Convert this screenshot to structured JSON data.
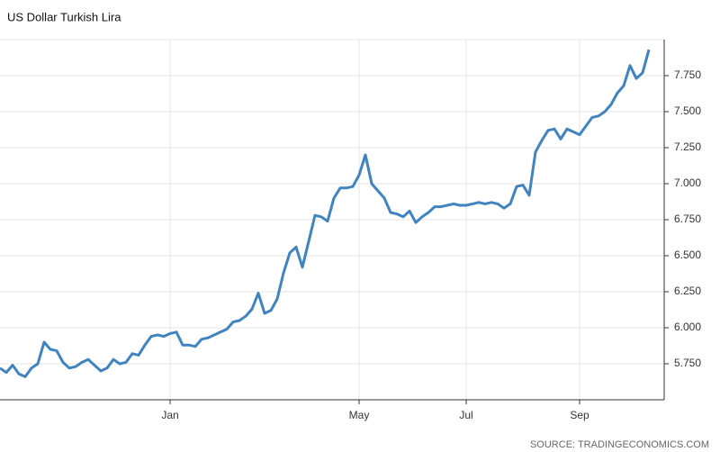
{
  "chart_data": {
    "type": "line",
    "title": "US Dollar Turkish Lira",
    "source": "SOURCE: TRADINGECONOMICS.COM",
    "categories": [
      null,
      null,
      null,
      null,
      null,
      null,
      null,
      null,
      null,
      null,
      null,
      null,
      null,
      null,
      null,
      null,
      null,
      null,
      null,
      null,
      null,
      null,
      null,
      null,
      null,
      null,
      null,
      "Jan",
      null,
      null,
      null,
      null,
      null,
      null,
      null,
      null,
      null,
      null,
      null,
      null,
      null,
      null,
      null,
      null,
      null,
      null,
      null,
      null,
      null,
      null,
      null,
      null,
      null,
      null,
      null,
      null,
      null,
      "May",
      null,
      null,
      null,
      null,
      null,
      null,
      null,
      null,
      null,
      null,
      null,
      null,
      null,
      null,
      null,
      null,
      "Jul",
      null,
      null,
      null,
      null,
      null,
      null,
      null,
      null,
      null,
      null,
      null,
      null,
      null,
      null,
      null,
      null,
      null,
      "Sep",
      null,
      null,
      null,
      null,
      null,
      null,
      null,
      null,
      null,
      null,
      null
    ],
    "series": [
      {
        "color": "#3f84c0",
        "values": [
          5.72,
          5.69,
          5.74,
          5.68,
          5.66,
          5.72,
          5.75,
          5.9,
          5.85,
          5.84,
          5.76,
          5.72,
          5.73,
          5.76,
          5.78,
          5.74,
          5.7,
          5.72,
          5.78,
          5.75,
          5.76,
          5.82,
          5.81,
          5.88,
          5.94,
          5.95,
          5.94,
          5.96,
          5.97,
          5.88,
          5.88,
          5.87,
          5.92,
          5.93,
          5.95,
          5.97,
          5.99,
          6.04,
          6.05,
          6.08,
          6.13,
          6.24,
          6.1,
          6.12,
          6.2,
          6.38,
          6.52,
          6.56,
          6.42,
          6.6,
          6.78,
          6.77,
          6.74,
          6.9,
          6.97,
          6.97,
          6.98,
          7.06,
          7.2,
          7.0,
          6.95,
          6.9,
          6.8,
          6.79,
          6.77,
          6.81,
          6.73,
          6.77,
          6.8,
          6.84,
          6.84,
          6.85,
          6.86,
          6.85,
          6.85,
          6.86,
          6.87,
          6.86,
          6.87,
          6.86,
          6.83,
          6.86,
          6.98,
          6.99,
          6.92,
          7.22,
          7.3,
          7.37,
          7.38,
          7.31,
          7.38,
          7.36,
          7.34,
          7.4,
          7.46,
          7.47,
          7.5,
          7.55,
          7.63,
          7.68,
          7.82,
          7.73,
          7.77,
          7.93
        ]
      }
    ],
    "ylim": [
      5.5,
      8.0
    ],
    "yticks": [
      {
        "value": 5.75,
        "label": "5.750"
      },
      {
        "value": 6.0,
        "label": "6.000"
      },
      {
        "value": 6.25,
        "label": "6.250"
      },
      {
        "value": 6.5,
        "label": "6.500"
      },
      {
        "value": 6.75,
        "label": "6.750"
      },
      {
        "value": 7.0,
        "label": "7.000"
      },
      {
        "value": 7.25,
        "label": "7.250"
      },
      {
        "value": 7.5,
        "label": "7.500"
      },
      {
        "value": 7.75,
        "label": "7.750"
      }
    ],
    "grid": true
  }
}
